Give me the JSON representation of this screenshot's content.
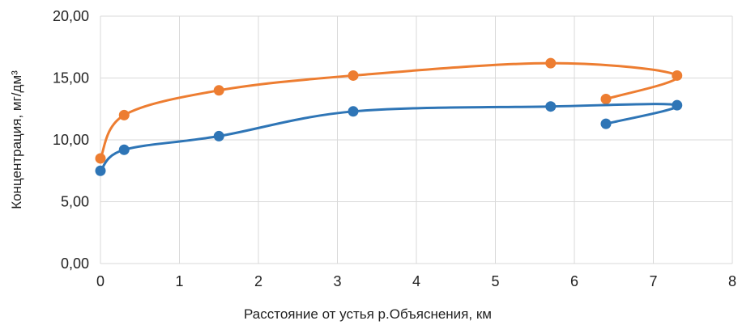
{
  "chart_data": {
    "type": "scatter",
    "title": "",
    "xlabel": "Расстояние от устья р.Объяснения, км",
    "ylabel": "Концентрация, мг/дм³",
    "xlim": [
      0,
      8
    ],
    "ylim": [
      0,
      20
    ],
    "x_ticks": [
      "0",
      "1",
      "2",
      "3",
      "4",
      "5",
      "6",
      "7",
      "8"
    ],
    "y_ticks": [
      "0,00",
      "5,00",
      "10,00",
      "15,00",
      "20,00"
    ],
    "grid": true,
    "legend": "none",
    "smooth_lines": true,
    "series": [
      {
        "color": "#ed7d31",
        "points": [
          [
            0,
            8.5
          ],
          [
            0.3,
            12.0
          ],
          [
            1.5,
            14.0
          ],
          [
            3.2,
            15.2
          ],
          [
            5.7,
            16.2
          ],
          [
            7.3,
            15.2
          ],
          [
            6.4,
            13.3
          ]
        ]
      },
      {
        "color": "#2e75b6",
        "points": [
          [
            0,
            7.5
          ],
          [
            0.3,
            9.2
          ],
          [
            1.5,
            10.3
          ],
          [
            3.2,
            12.3
          ],
          [
            5.7,
            12.7
          ],
          [
            7.3,
            12.8
          ],
          [
            6.4,
            11.3
          ]
        ]
      }
    ]
  }
}
